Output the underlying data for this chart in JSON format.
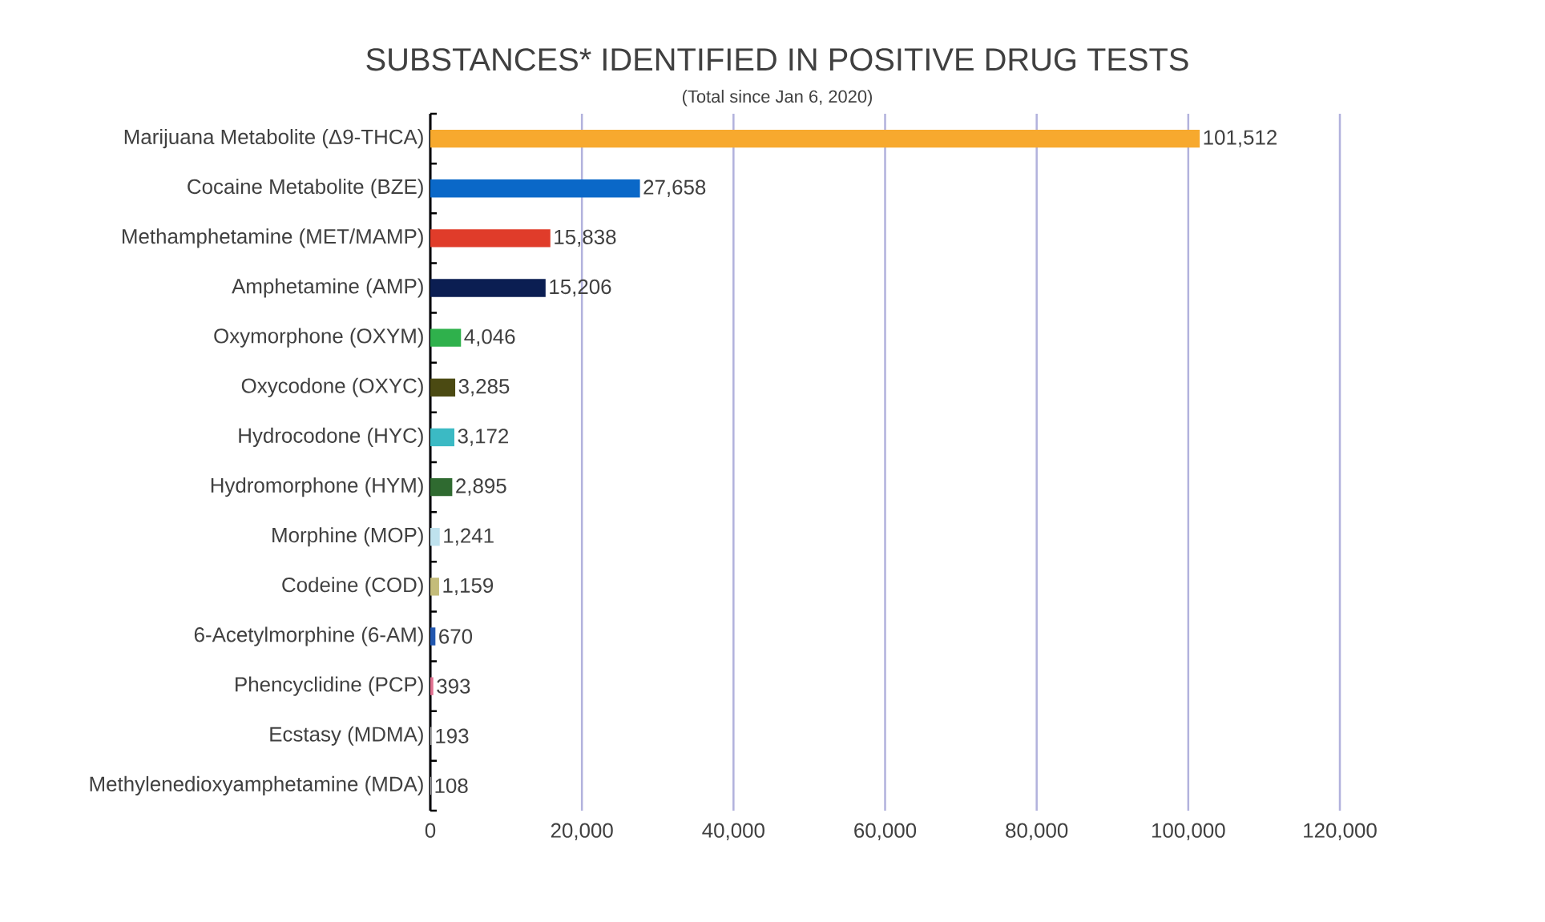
{
  "chart_data": {
    "type": "bar",
    "orientation": "horizontal",
    "title": "SUBSTANCES* IDENTIFIED IN POSITIVE DRUG TESTS",
    "subtitle": "(Total since Jan 6, 2020)",
    "categories": [
      "Marijuana Metabolite (Δ9-THCA)",
      "Cocaine Metabolite (BZE)",
      "Methamphetamine (MET/MAMP)",
      "Amphetamine (AMP)",
      "Oxymorphone (OXYM)",
      "Oxycodone (OXYC)",
      "Hydrocodone (HYC)",
      "Hydromorphone (HYM)",
      "Morphine (MOP)",
      "Codeine (COD)",
      "6-Acetylmorphine (6-AM)",
      "Phencyclidine (PCP)",
      "Ecstasy (MDMA)",
      "Methylenedioxyamphetamine (MDA)"
    ],
    "values": [
      101512,
      27658,
      15838,
      15206,
      4046,
      3285,
      3172,
      2895,
      1241,
      1159,
      670,
      393,
      193,
      108
    ],
    "value_labels": [
      "101,512",
      "27,658",
      "15,838",
      "15,206",
      "4,046",
      "3,285",
      "3,172",
      "2,895",
      "1,241",
      "1,159",
      "670",
      "393",
      "193",
      "108"
    ],
    "colors": [
      "#f7a92e",
      "#0a68c8",
      "#e03c2a",
      "#0b1e52",
      "#2fb14c",
      "#4b4a12",
      "#3bbac4",
      "#2f6a30",
      "#bfe2ee",
      "#c4bc7a",
      "#2358b0",
      "#e07090",
      "#b0b0b0",
      "#b0b0b0"
    ],
    "xlim": [
      0,
      120000
    ],
    "xticks": [
      0,
      {
        "value": 20000,
        "label": "20,000"
      },
      {
        "value": 40000,
        "label": "40,000"
      },
      {
        "value": 60000,
        "label": "60,000"
      },
      {
        "value": 80000,
        "label": "80,000"
      },
      {
        "value": 100000,
        "label": "100,000"
      },
      {
        "value": 120000,
        "label": "120,000"
      }
    ],
    "grid": "x"
  }
}
